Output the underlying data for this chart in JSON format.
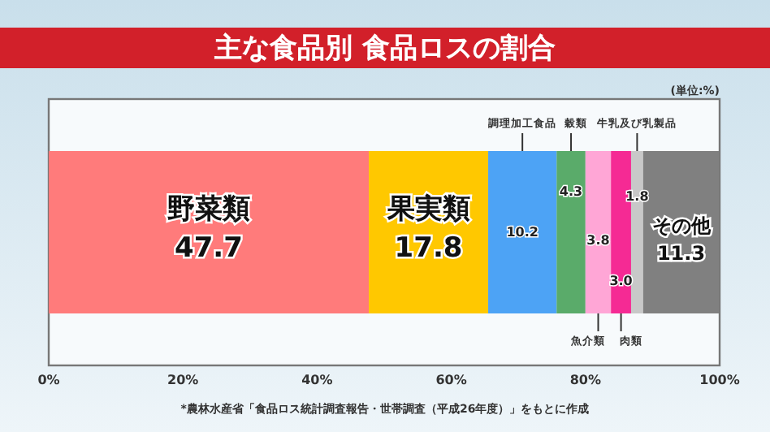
{
  "chart_data": {
    "type": "bar",
    "orientation": "horizontal",
    "stacked": true,
    "title": "主な食品別 食品ロスの割合",
    "categories": [
      null
    ],
    "series": [
      {
        "name": "野菜類",
        "color": "#ff7b7b",
        "values": [
          47.7
        ]
      },
      {
        "name": "果実類",
        "color": "#ffc800",
        "values": [
          17.8
        ]
      },
      {
        "name": "調理加工食品",
        "color": "#4da3f5",
        "values": [
          10.2
        ]
      },
      {
        "name": "穀類",
        "color": "#5aab6a",
        "values": [
          4.3
        ]
      },
      {
        "name": "魚介類",
        "color": "#ffa6d6",
        "values": [
          3.8
        ]
      },
      {
        "name": "肉類",
        "color": "#f52a94",
        "values": [
          3.0
        ],
        "value_labels": [
          "3.0"
        ]
      },
      {
        "name": "牛乳及び乳製品",
        "color": "#c8c8c8",
        "values": [
          1.8
        ]
      },
      {
        "name": "その他",
        "color": "#808080",
        "values": [
          11.3
        ]
      }
    ],
    "xlim": [
      0,
      100
    ],
    "xticks": [
      {
        "value": 0,
        "label": "0%"
      },
      {
        "value": 20,
        "label": "20%"
      },
      {
        "value": 40,
        "label": "40%"
      },
      {
        "value": 60,
        "label": "60%"
      },
      {
        "value": 80,
        "label": "80%"
      },
      {
        "value": 100,
        "label": "100%"
      }
    ],
    "data_labels": true,
    "legend": false,
    "grid": false,
    "annotations": [
      "(単位:%)",
      "*農林水産省「食品ロス統計調査報告・世帯調査（平成26年度）」をもとに作成"
    ]
  }
}
